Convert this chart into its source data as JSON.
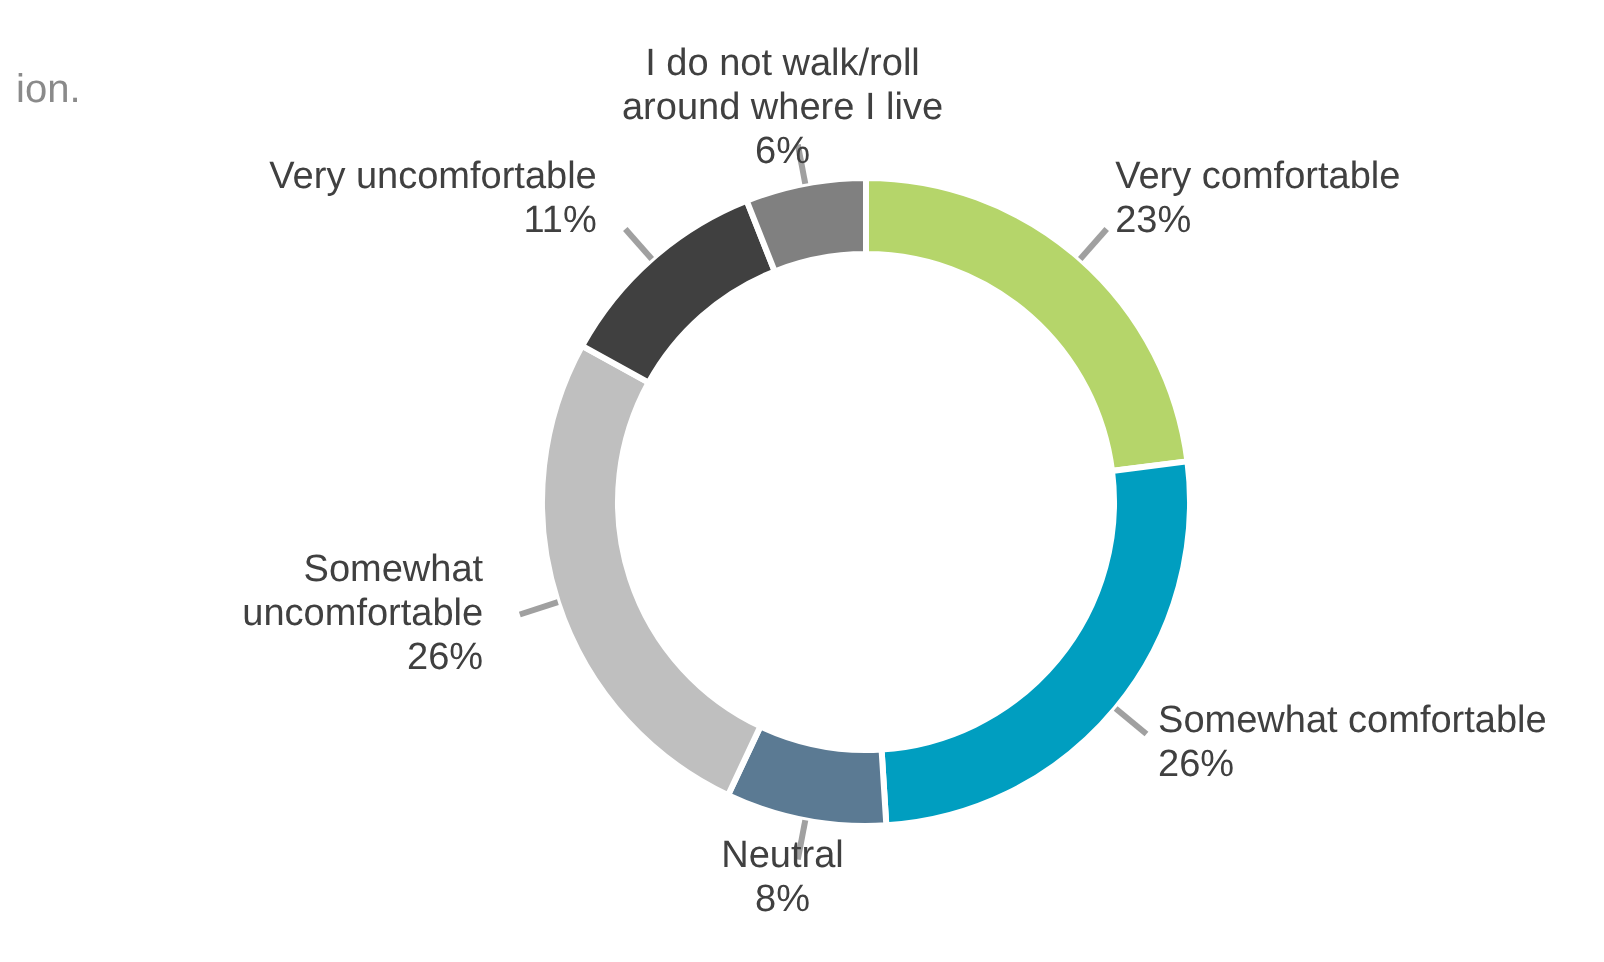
{
  "chart_data": {
    "type": "donut",
    "subtitle": "ion.",
    "categories": [
      "Very comfortable",
      "Somewhat comfortable",
      "Neutral",
      "Somewhat uncomfortable",
      "Very uncomfortable",
      "I do not walk/roll around where I live"
    ],
    "values": [
      23,
      26,
      8,
      26,
      11,
      6
    ],
    "value_labels": [
      "23%",
      "26%",
      "8%",
      "26%",
      "11%",
      "6%"
    ],
    "colors": [
      "#b5d56a",
      "#009ec0",
      "#5b7a93",
      "#bfbfbf",
      "#404040",
      "#808080"
    ]
  }
}
